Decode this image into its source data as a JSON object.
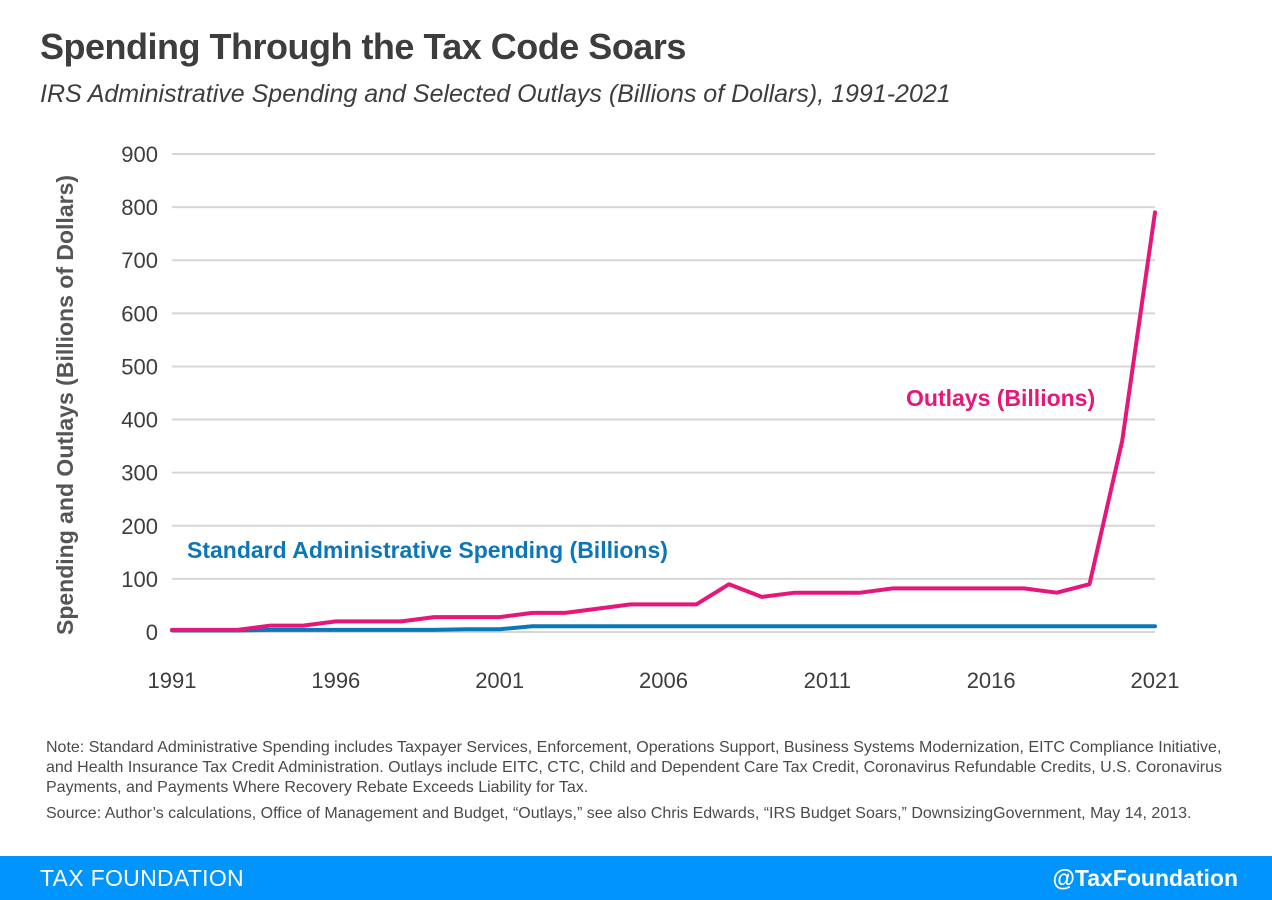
{
  "header": {
    "title": "Spending Through the Tax Code Soars",
    "subtitle": "IRS Administrative Spending and Selected Outlays (Billions of Dollars), 1991-2021"
  },
  "chart_data": {
    "type": "line",
    "title": "Spending Through the Tax Code Soars",
    "subtitle": "IRS Administrative Spending and Selected Outlays (Billions of Dollars), 1991-2021",
    "xlabel": "",
    "ylabel": "Spending and Outlays (Billions of Dollars)",
    "x": [
      1991,
      1992,
      1993,
      1994,
      1995,
      1996,
      1997,
      1998,
      1999,
      2000,
      2001,
      2002,
      2003,
      2004,
      2005,
      2006,
      2007,
      2008,
      2009,
      2010,
      2011,
      2012,
      2013,
      2014,
      2015,
      2016,
      2017,
      2018,
      2019,
      2020,
      2021
    ],
    "xticks": [
      1991,
      1996,
      2001,
      2006,
      2011,
      2016,
      2021
    ],
    "ylim": [
      0,
      900
    ],
    "yticks": [
      0,
      100,
      200,
      300,
      400,
      500,
      600,
      700,
      800,
      900
    ],
    "grid": true,
    "series": [
      {
        "name": "Outlays (Billions)",
        "color": "#e6177a",
        "values": [
          4,
          4,
          4,
          12,
          12,
          20,
          20,
          20,
          28,
          28,
          28,
          36,
          36,
          44,
          52,
          52,
          52,
          90,
          66,
          74,
          74,
          74,
          82,
          82,
          82,
          82,
          82,
          74,
          90,
          360,
          790
        ]
      },
      {
        "name": "Standard Administrative Spending (Billions)",
        "color": "#0b77b8",
        "values": [
          3,
          3,
          3,
          4,
          4,
          4,
          4,
          4,
          4,
          5,
          5,
          11,
          11,
          11,
          11,
          11,
          11,
          11,
          11,
          11,
          11,
          11,
          11,
          11,
          11,
          11,
          11,
          11,
          11,
          11,
          11
        ]
      }
    ]
  },
  "notes": {
    "note": "Note: Standard Administrative Spending includes Taxpayer Services, Enforcement, Operations Support, Business Systems Modernization, EITC Compliance Initiative, and Health Insurance Tax Credit Administration. Outlays include EITC, CTC, Child and Dependent Care Tax Credit, Coronavirus Refundable Credits, U.S. Coronavirus Payments, and Payments Where Recovery Rebate Exceeds Liability for Tax.",
    "source": "Source: Author’s calculations, Office of Management and Budget, “Outlays,” see also Chris Edwards, “IRS Budget Soars,” DownsizingGovernment, May 14, 2013."
  },
  "footer": {
    "brand": "TAX FOUNDATION",
    "handle": "@TaxFoundation"
  },
  "colors": {
    "footer_bg": "#0094ff",
    "outlays": "#e6177a",
    "admin": "#0b77b8"
  }
}
